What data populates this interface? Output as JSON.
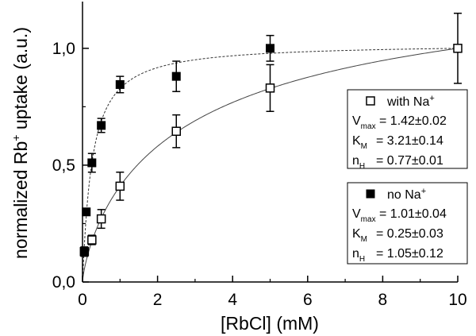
{
  "chart_data": {
    "type": "scatter",
    "xlabel_main": "[RbCl] (mM)",
    "ylabel": {
      "prefix": "normalized Rb",
      "sup": "+",
      "suffix": " uptake (a.u.)"
    },
    "xlim": [
      0,
      10
    ],
    "ylim": [
      0,
      1.2
    ],
    "x_ticks": [
      {
        "value": 0,
        "label": "0"
      },
      {
        "value": 2,
        "label": "2"
      },
      {
        "value": 4,
        "label": "4"
      },
      {
        "value": 6,
        "label": "6"
      },
      {
        "value": 8,
        "label": "8"
      },
      {
        "value": 10,
        "label": "10"
      }
    ],
    "y_ticks": [
      {
        "value": 0,
        "label": "0,0"
      },
      {
        "value": 0.5,
        "label": "0,5"
      },
      {
        "value": 1.0,
        "label": "1,0"
      }
    ],
    "series": [
      {
        "key": "with_na",
        "marker": "open-square",
        "line": "solid",
        "fit": {
          "vmax": 1.42,
          "km": 3.21,
          "nh": 0.77
        },
        "points": [
          {
            "x": 0.05,
            "y": 0.13,
            "err": 0.0
          },
          {
            "x": 0.25,
            "y": 0.18,
            "err": 0.02
          },
          {
            "x": 0.5,
            "y": 0.27,
            "err": 0.04
          },
          {
            "x": 1.0,
            "y": 0.41,
            "err": 0.06
          },
          {
            "x": 2.5,
            "y": 0.645,
            "err": 0.07
          },
          {
            "x": 5.0,
            "y": 0.83,
            "err": 0.1
          },
          {
            "x": 10.0,
            "y": 1.0,
            "err": 0.15
          }
        ]
      },
      {
        "key": "no_na",
        "marker": "filled-square",
        "line": "dotted",
        "fit": {
          "vmax": 1.01,
          "km": 0.25,
          "nh": 1.05
        },
        "points": [
          {
            "x": 0.05,
            "y": 0.13,
            "err": 0.02
          },
          {
            "x": 0.1,
            "y": 0.3,
            "err": 0.0
          },
          {
            "x": 0.25,
            "y": 0.51,
            "err": 0.04
          },
          {
            "x": 0.5,
            "y": 0.67,
            "err": 0.03
          },
          {
            "x": 1.0,
            "y": 0.845,
            "err": 0.035
          },
          {
            "x": 2.5,
            "y": 0.88,
            "err": 0.065
          },
          {
            "x": 5.0,
            "y": 1.0,
            "err": 0.055
          }
        ]
      }
    ],
    "legends": [
      {
        "key": "with_na",
        "label": "with Na",
        "label_sup": "+",
        "params": [
          {
            "sym": "V",
            "sub": "max",
            "value": "=  1.42±0.02"
          },
          {
            "sym": "K",
            "sub": "M",
            "value": "=  3.21±0.14"
          },
          {
            "sym": "n",
            "sub": "H",
            "value": "=  0.77±0.01"
          }
        ]
      },
      {
        "key": "no_na",
        "label": "no Na",
        "label_sup": "+",
        "params": [
          {
            "sym": "V",
            "sub": "max",
            "value": "=  1.01±0.04"
          },
          {
            "sym": "K",
            "sub": "M",
            "value": "=  0.25±0.03"
          },
          {
            "sym": "n",
            "sub": "H",
            "value": "=  1.05±0.12"
          }
        ]
      }
    ]
  }
}
